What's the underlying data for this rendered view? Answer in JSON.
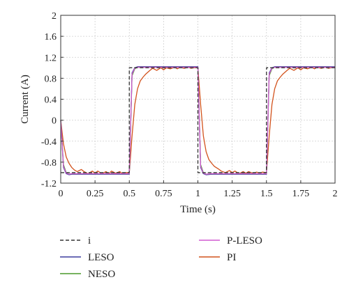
{
  "chart_data": {
    "type": "line",
    "xlabel": "Time (s)",
    "ylabel": "Current (A)",
    "xlim": [
      0,
      2
    ],
    "ylim": [
      -1.2,
      2
    ],
    "xticks": [
      "0",
      "0.25",
      "0.5",
      "0.75",
      "1",
      "1.25",
      "1.5",
      "1.75",
      "2"
    ],
    "yticks": [
      "2",
      "1.6",
      "1.2",
      "0.8",
      "0.4",
      "0",
      "-0.4",
      "-0.8",
      "-1.2"
    ],
    "grid": true,
    "legend_position": "bottom",
    "series": [
      {
        "name": "i",
        "color": "#333333",
        "dash": true,
        "x": [
          0,
          0.5,
          0.5,
          1.0,
          1.0,
          1.5,
          1.5,
          2.0
        ],
        "y": [
          -1.0,
          -1.0,
          1.0,
          1.0,
          -1.0,
          -1.0,
          1.0,
          1.0
        ]
      },
      {
        "name": "LESO",
        "color": "#3b3b9e",
        "dash": false,
        "x": [
          0,
          0.02,
          0.04,
          0.06,
          0.08,
          0.5,
          0.52,
          0.54,
          0.56,
          0.6,
          1.0,
          1.02,
          1.04,
          1.06,
          1.1,
          1.5,
          1.52,
          1.54,
          1.56,
          1.6,
          2.0
        ],
        "y": [
          0,
          -0.9,
          -1.02,
          -1.04,
          -1.03,
          -1.03,
          0.9,
          1.0,
          1.02,
          1.02,
          1.02,
          -0.9,
          -1.02,
          -1.04,
          -1.03,
          -1.03,
          0.9,
          1.0,
          1.02,
          1.02,
          1.02
        ]
      },
      {
        "name": "NESO",
        "color": "#4a9a2a",
        "dash": false,
        "x": [
          0,
          0.02,
          0.04,
          0.06,
          0.08,
          0.5,
          0.52,
          0.54,
          0.56,
          0.6,
          1.0,
          1.02,
          1.04,
          1.06,
          1.1,
          1.5,
          1.52,
          1.54,
          1.56,
          1.6,
          2.0
        ],
        "y": [
          0,
          -0.85,
          -1.0,
          -1.03,
          -1.02,
          -1.02,
          0.85,
          0.98,
          1.01,
          1.01,
          1.01,
          -0.85,
          -1.0,
          -1.03,
          -1.02,
          -1.02,
          0.85,
          0.98,
          1.01,
          1.01,
          1.01
        ]
      },
      {
        "name": "P-LESO",
        "color": "#d05ad0",
        "dash": false,
        "x": [
          0,
          0.02,
          0.04,
          0.06,
          0.08,
          0.5,
          0.52,
          0.54,
          0.56,
          0.6,
          1.0,
          1.02,
          1.04,
          1.06,
          1.1,
          1.5,
          1.52,
          1.54,
          1.56,
          1.6,
          2.0
        ],
        "y": [
          0,
          -0.88,
          -1.01,
          -1.03,
          -1.02,
          -1.02,
          0.88,
          0.99,
          1.01,
          1.01,
          1.01,
          -0.88,
          -1.01,
          -1.03,
          -1.02,
          -1.02,
          0.88,
          0.99,
          1.01,
          1.01,
          1.01
        ]
      },
      {
        "name": "PI",
        "color": "#d2521c",
        "dash": false,
        "x": [
          0,
          0.02,
          0.04,
          0.06,
          0.08,
          0.1,
          0.12,
          0.15,
          0.17,
          0.2,
          0.23,
          0.25,
          0.27,
          0.3,
          0.33,
          0.35,
          0.37,
          0.4,
          0.43,
          0.45,
          0.47,
          0.5,
          0.52,
          0.54,
          0.56,
          0.58,
          0.6,
          0.62,
          0.65,
          0.67,
          0.7,
          0.73,
          0.75,
          0.77,
          0.8,
          0.83,
          0.85,
          0.87,
          0.9,
          0.93,
          0.95,
          0.97,
          1.0,
          1.02,
          1.04,
          1.06,
          1.08,
          1.1,
          1.12,
          1.15,
          1.17,
          1.2,
          1.23,
          1.25,
          1.27,
          1.3,
          1.33,
          1.35,
          1.37,
          1.4,
          1.43,
          1.45,
          1.47,
          1.5,
          1.52,
          1.54,
          1.56,
          1.58,
          1.6,
          1.62,
          1.65,
          1.67,
          1.7,
          1.73,
          1.75,
          1.77,
          1.8,
          1.83,
          1.85,
          1.87,
          1.9,
          1.93,
          1.95,
          1.97,
          2.0
        ],
        "y": [
          0,
          -0.45,
          -0.7,
          -0.82,
          -0.9,
          -0.95,
          -0.98,
          -0.94,
          -0.98,
          -1.02,
          -0.97,
          -1.01,
          -0.97,
          -1.02,
          -0.98,
          -1.02,
          -0.97,
          -1.01,
          -0.98,
          -1.02,
          -1.0,
          -1.0,
          -0.3,
          0.3,
          0.6,
          0.75,
          0.82,
          0.88,
          0.95,
          0.99,
          0.95,
          1.0,
          0.96,
          1.0,
          0.98,
          1.01,
          0.98,
          1.01,
          0.99,
          1.01,
          0.99,
          1.0,
          1.0,
          0.3,
          -0.3,
          -0.6,
          -0.75,
          -0.82,
          -0.88,
          -0.93,
          -0.97,
          -1.0,
          -0.96,
          -1.0,
          -0.97,
          -1.02,
          -0.98,
          -1.01,
          -0.98,
          -1.01,
          -0.99,
          -1.01,
          -0.99,
          -1.0,
          -0.3,
          0.3,
          0.6,
          0.75,
          0.82,
          0.88,
          0.95,
          0.99,
          0.95,
          1.0,
          0.96,
          1.0,
          0.98,
          1.01,
          0.98,
          1.01,
          0.99,
          1.01,
          0.99,
          1.0,
          1.0
        ]
      }
    ]
  }
}
